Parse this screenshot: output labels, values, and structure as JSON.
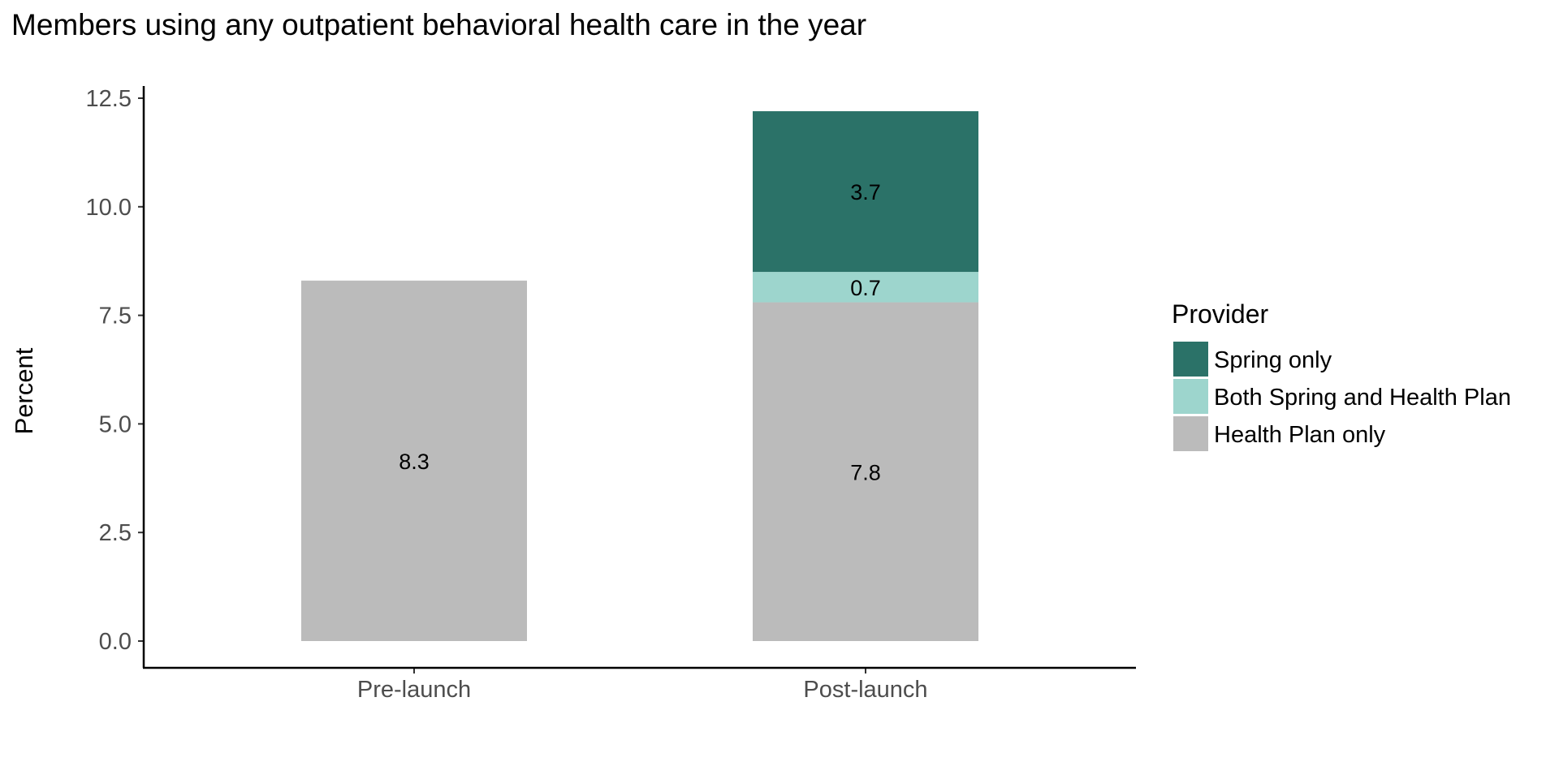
{
  "chart_data": {
    "type": "bar",
    "stacked": true,
    "title": "Members using any outpatient behavioral health care in the year",
    "xlabel": "",
    "ylabel": "Percent",
    "ylim": [
      0,
      12.5
    ],
    "yticks": [
      "0.0",
      "2.5",
      "5.0",
      "7.5",
      "10.0",
      "12.5"
    ],
    "categories": [
      "Pre-launch",
      "Post-launch"
    ],
    "series": [
      {
        "name": "Health Plan only",
        "color": "#bbbbbb",
        "values": [
          8.3,
          7.8
        ],
        "labels": [
          "8.3",
          "7.8"
        ]
      },
      {
        "name": "Both Spring and Health Plan",
        "color": "#9dd5cd",
        "values": [
          0,
          0.7
        ],
        "labels": [
          "",
          "0.7"
        ]
      },
      {
        "name": "Spring only",
        "color": "#2b7268",
        "values": [
          0,
          3.7
        ],
        "labels": [
          "",
          "3.7"
        ]
      }
    ],
    "grid": false,
    "legend": {
      "title": "Provider",
      "position": "right",
      "order": [
        "Spring only",
        "Both Spring and Health Plan",
        "Health Plan only"
      ]
    }
  }
}
